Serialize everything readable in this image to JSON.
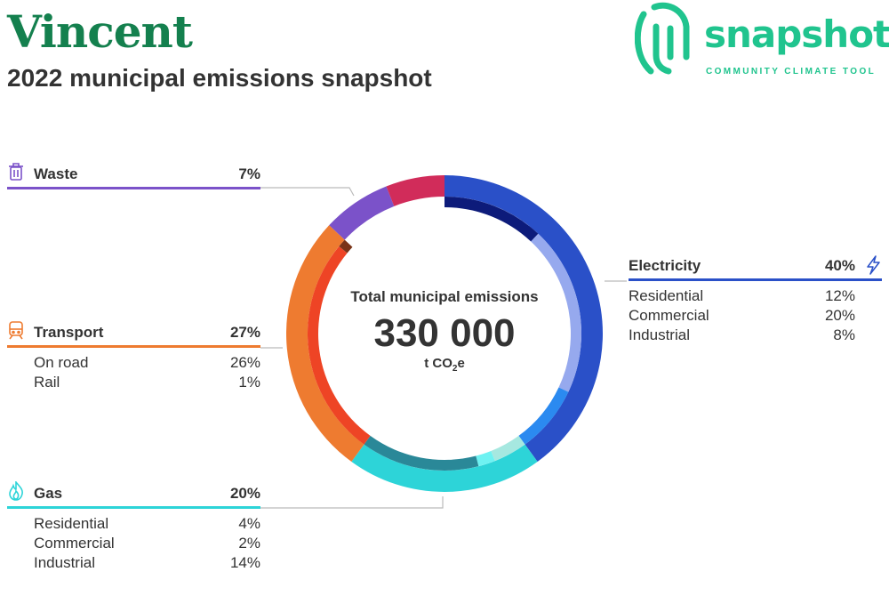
{
  "header": {
    "title": "Vincent",
    "subtitle": "2022 municipal emissions snapshot",
    "brand_name": "snapshot",
    "brand_tagline": "COMMUNITY CLIMATE TOOL"
  },
  "total": {
    "label": "Total municipal emissions",
    "value": "330 000",
    "unit_prefix": "t CO",
    "unit_sub": "2",
    "unit_suffix": "e"
  },
  "colors": {
    "title": "#14804e",
    "brand": "#20c48e",
    "waste": "#7b52c9",
    "transport": "#ee7b30",
    "gas": "#2dd4d8",
    "electricity": "#2a50c8",
    "unallocated": "#d12c5a"
  },
  "chart_data": {
    "type": "pie",
    "style": "donut",
    "unit": "t CO2e",
    "total": 330000,
    "sectors": [
      {
        "name": "Electricity",
        "share": 40,
        "color": "#2a50c8",
        "icon": "lightning-icon",
        "subsectors": [
          {
            "name": "Residential",
            "share": 12,
            "color": "#0d1b7a"
          },
          {
            "name": "Commercial",
            "share": 20,
            "color": "#96a9ee"
          },
          {
            "name": "Industrial",
            "share": 8,
            "color": "#2b8af0"
          }
        ]
      },
      {
        "name": "Gas",
        "share": 20,
        "color": "#2dd4d8",
        "icon": "flame-icon",
        "subsectors": [
          {
            "name": "Residential",
            "share": 4,
            "color": "#a6e8e0"
          },
          {
            "name": "Commercial",
            "share": 2,
            "color": "#6ef2f2"
          },
          {
            "name": "Industrial",
            "share": 14,
            "color": "#2a8898"
          }
        ]
      },
      {
        "name": "Transport",
        "share": 27,
        "color": "#ee7b30",
        "icon": "train-icon",
        "subsectors": [
          {
            "name": "On road",
            "share": 26,
            "color": "#ee4425"
          },
          {
            "name": "Rail",
            "share": 1,
            "color": "#7a3418"
          }
        ]
      },
      {
        "name": "Waste",
        "share": 7,
        "color": "#7b52c9",
        "icon": "trash-icon",
        "subsectors": []
      },
      {
        "name": "",
        "share": 6,
        "color": "#d12c5a",
        "icon": "",
        "subsectors": []
      }
    ]
  },
  "legend": {
    "waste": {
      "name": "Waste",
      "pct": "7%"
    },
    "transport": {
      "name": "Transport",
      "pct": "27%",
      "rows": [
        {
          "label": "On road",
          "value": "26%"
        },
        {
          "label": "Rail",
          "value": "1%"
        }
      ]
    },
    "gas": {
      "name": "Gas",
      "pct": "20%",
      "rows": [
        {
          "label": "Residential",
          "value": "4%"
        },
        {
          "label": "Commercial",
          "value": "2%"
        },
        {
          "label": "Industrial",
          "value": "14%"
        }
      ]
    },
    "electricity": {
      "name": "Electricity",
      "pct": "40%",
      "rows": [
        {
          "label": "Residential",
          "value": "12%"
        },
        {
          "label": "Commercial",
          "value": "20%"
        },
        {
          "label": "Industrial",
          "value": "8%"
        }
      ]
    }
  }
}
